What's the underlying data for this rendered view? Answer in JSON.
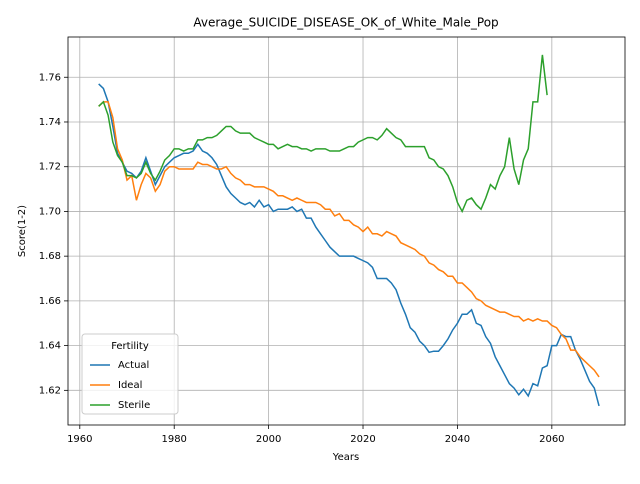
{
  "chart_data": {
    "type": "line",
    "title": "Average_SUICIDE_DISEASE_OK_of_White_Male_Pop",
    "x_label": "Years",
    "y_label": "Score(1-2)",
    "legend_title": "Fertility",
    "legend_position": "lower left",
    "grid": true,
    "xlim": [
      1957.5,
      2075.5
    ],
    "ylim": [
      1.6045,
      1.778
    ],
    "xticks": [
      1960,
      1980,
      2000,
      2020,
      2040,
      2060
    ],
    "yticks": [
      {
        "value": 1.62,
        "label": "1.62"
      },
      {
        "value": 1.64,
        "label": "1.64"
      },
      {
        "value": 1.66,
        "label": "1.66"
      },
      {
        "value": 1.68,
        "label": "1.68"
      },
      {
        "value": 1.7,
        "label": "1.70"
      },
      {
        "value": 1.72,
        "label": "1.72"
      },
      {
        "value": 1.74,
        "label": "1.74"
      },
      {
        "value": 1.76,
        "label": "1.76"
      }
    ],
    "x": [
      1964,
      1965,
      1966,
      1967,
      1968,
      1969,
      1970,
      1971,
      1972,
      1973,
      1974,
      1975,
      1976,
      1977,
      1978,
      1979,
      1980,
      1981,
      1982,
      1983,
      1984,
      1985,
      1986,
      1987,
      1988,
      1989,
      1990,
      1991,
      1992,
      1993,
      1994,
      1995,
      1996,
      1997,
      1998,
      1999,
      2000,
      2001,
      2002,
      2003,
      2004,
      2005,
      2006,
      2007,
      2008,
      2009,
      2010,
      2011,
      2012,
      2013,
      2014,
      2015,
      2016,
      2017,
      2018,
      2019,
      2020,
      2021,
      2022,
      2023,
      2024,
      2025,
      2026,
      2027,
      2028,
      2029,
      2030,
      2031,
      2032,
      2033,
      2034,
      2035,
      2036,
      2037,
      2038,
      2039,
      2040,
      2041,
      2042,
      2043,
      2044,
      2045,
      2046,
      2047,
      2048,
      2049,
      2050,
      2051,
      2052,
      2053,
      2054,
      2055,
      2056,
      2057,
      2058,
      2059,
      2060,
      2061,
      2062,
      2063,
      2064,
      2065,
      2066,
      2067,
      2068,
      2069,
      2070
    ],
    "series": [
      {
        "name": "Actual",
        "color": "#1f77b4",
        "values": [
          1.757,
          1.755,
          1.749,
          1.738,
          1.726,
          1.722,
          1.718,
          1.717,
          1.715,
          1.718,
          1.724,
          1.718,
          1.712,
          1.716,
          1.72,
          1.722,
          1.724,
          1.725,
          1.726,
          1.726,
          1.727,
          1.73,
          1.727,
          1.726,
          1.724,
          1.721,
          1.716,
          1.711,
          1.708,
          1.706,
          1.704,
          1.703,
          1.704,
          1.702,
          1.705,
          1.702,
          1.703,
          1.7,
          1.701,
          1.701,
          1.701,
          1.702,
          1.7,
          1.701,
          1.697,
          1.697,
          1.693,
          1.69,
          1.687,
          1.684,
          1.682,
          1.68,
          1.68,
          1.68,
          1.68,
          1.679,
          1.678,
          1.677,
          1.675,
          1.67,
          1.67,
          1.67,
          1.668,
          1.665,
          1.659,
          1.654,
          1.648,
          1.646,
          1.642,
          1.64,
          1.637,
          1.6375,
          1.6375,
          1.64,
          1.643,
          1.647,
          1.65,
          1.654,
          1.654,
          1.656,
          1.65,
          1.649,
          1.644,
          1.641,
          1.635,
          1.631,
          1.627,
          1.623,
          1.621,
          1.618,
          1.6205,
          1.6175,
          1.623,
          1.622,
          1.63,
          1.631,
          1.64,
          1.64,
          1.645,
          1.644,
          1.644,
          1.638,
          1.634,
          1.629,
          1.624,
          1.621,
          1.613
        ]
      },
      {
        "name": "Ideal",
        "color": "#ff7f0e",
        "values": [
          1.747,
          1.749,
          1.749,
          1.742,
          1.728,
          1.723,
          1.714,
          1.716,
          1.705,
          1.712,
          1.717,
          1.715,
          1.709,
          1.712,
          1.718,
          1.72,
          1.72,
          1.719,
          1.719,
          1.719,
          1.719,
          1.722,
          1.721,
          1.721,
          1.72,
          1.719,
          1.719,
          1.72,
          1.717,
          1.715,
          1.714,
          1.712,
          1.712,
          1.711,
          1.711,
          1.711,
          1.71,
          1.709,
          1.707,
          1.707,
          1.706,
          1.705,
          1.706,
          1.705,
          1.704,
          1.704,
          1.704,
          1.703,
          1.701,
          1.701,
          1.698,
          1.699,
          1.696,
          1.696,
          1.694,
          1.693,
          1.691,
          1.693,
          1.69,
          1.69,
          1.689,
          1.691,
          1.69,
          1.689,
          1.686,
          1.685,
          1.684,
          1.683,
          1.681,
          1.68,
          1.677,
          1.676,
          1.674,
          1.673,
          1.671,
          1.671,
          1.668,
          1.668,
          1.666,
          1.664,
          1.661,
          1.66,
          1.658,
          1.657,
          1.656,
          1.655,
          1.655,
          1.654,
          1.653,
          1.653,
          1.651,
          1.652,
          1.651,
          1.652,
          1.651,
          1.651,
          1.649,
          1.648,
          1.645,
          1.643,
          1.638,
          1.638,
          1.635,
          1.633,
          1.631,
          1.629,
          1.626
        ]
      },
      {
        "name": "Sterile",
        "color": "#2ca02c",
        "values": [
          1.747,
          1.749,
          1.743,
          1.731,
          1.725,
          1.722,
          1.716,
          1.716,
          1.715,
          1.717,
          1.722,
          1.717,
          1.714,
          1.718,
          1.723,
          1.725,
          1.728,
          1.728,
          1.727,
          1.728,
          1.728,
          1.732,
          1.732,
          1.733,
          1.733,
          1.734,
          1.736,
          1.738,
          1.738,
          1.736,
          1.735,
          1.735,
          1.735,
          1.733,
          1.732,
          1.731,
          1.73,
          1.73,
          1.728,
          1.729,
          1.73,
          1.729,
          1.729,
          1.728,
          1.728,
          1.727,
          1.728,
          1.728,
          1.728,
          1.727,
          1.727,
          1.727,
          1.728,
          1.729,
          1.729,
          1.731,
          1.732,
          1.733,
          1.733,
          1.732,
          1.734,
          1.737,
          1.735,
          1.733,
          1.732,
          1.729,
          1.729,
          1.729,
          1.729,
          1.729,
          1.724,
          1.723,
          1.72,
          1.719,
          1.716,
          1.711,
          1.704,
          1.7,
          1.705,
          1.706,
          1.703,
          1.701,
          1.706,
          1.712,
          1.71,
          1.716,
          1.72,
          1.733,
          1.719,
          1.712,
          1.723,
          1.728,
          1.749,
          1.749,
          1.77,
          1.752,
          null,
          null,
          null,
          null,
          null,
          null,
          null,
          null,
          null,
          null,
          null
        ]
      }
    ]
  }
}
